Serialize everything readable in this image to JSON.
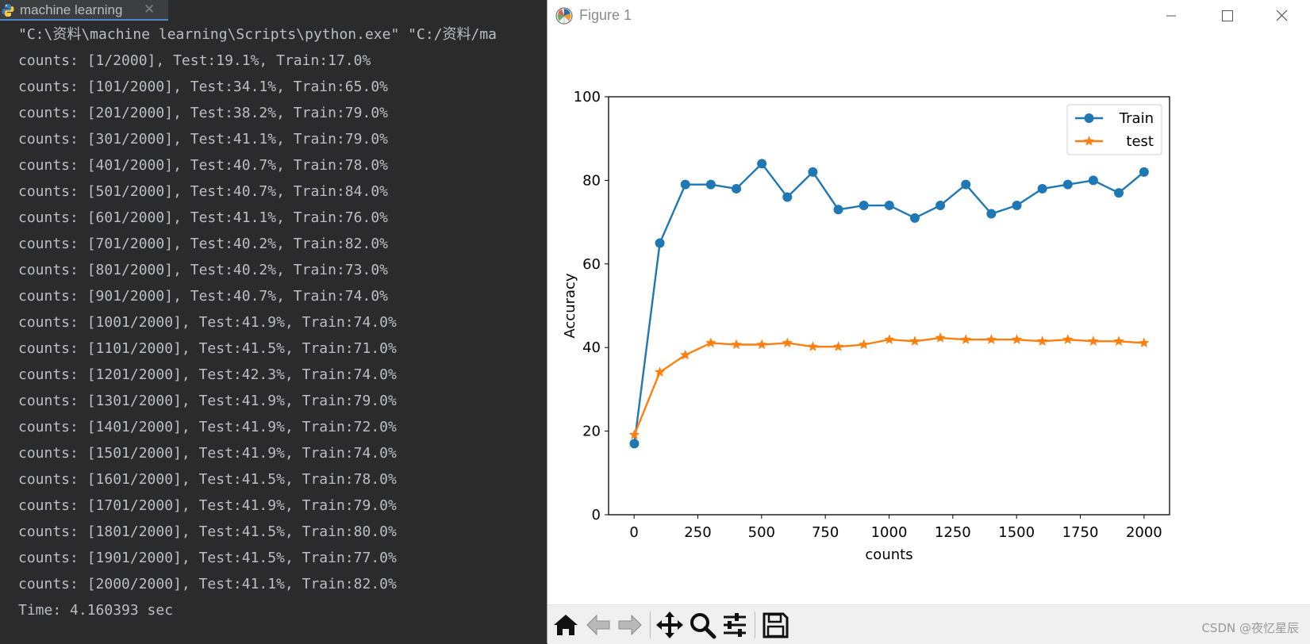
{
  "console": {
    "tab_label": "machine learning",
    "lines": [
      "\"C:\\资料\\machine learning\\Scripts\\python.exe\" \"C:/资料/ma",
      "counts: [1/2000], Test:19.1%, Train:17.0%",
      "counts: [101/2000], Test:34.1%, Train:65.0%",
      "counts: [201/2000], Test:38.2%, Train:79.0%",
      "counts: [301/2000], Test:41.1%, Train:79.0%",
      "counts: [401/2000], Test:40.7%, Train:78.0%",
      "counts: [501/2000], Test:40.7%, Train:84.0%",
      "counts: [601/2000], Test:41.1%, Train:76.0%",
      "counts: [701/2000], Test:40.2%, Train:82.0%",
      "counts: [801/2000], Test:40.2%, Train:73.0%",
      "counts: [901/2000], Test:40.7%, Train:74.0%",
      "counts: [1001/2000], Test:41.9%, Train:74.0%",
      "counts: [1101/2000], Test:41.5%, Train:71.0%",
      "counts: [1201/2000], Test:42.3%, Train:74.0%",
      "counts: [1301/2000], Test:41.9%, Train:79.0%",
      "counts: [1401/2000], Test:41.9%, Train:72.0%",
      "counts: [1501/2000], Test:41.9%, Train:74.0%",
      "counts: [1601/2000], Test:41.5%, Train:78.0%",
      "counts: [1701/2000], Test:41.9%, Train:79.0%",
      "counts: [1801/2000], Test:41.5%, Train:80.0%",
      "counts: [1901/2000], Test:41.5%, Train:77.0%",
      "counts: [2000/2000], Test:41.1%, Train:82.0%",
      "Time: 4.160393 sec"
    ]
  },
  "figure": {
    "title": "Figure 1",
    "watermark": "CSDN @夜忆星辰",
    "toolbar_icons": [
      "home-icon",
      "back-arrow-icon",
      "forward-arrow-icon",
      "pan-icon",
      "zoom-icon",
      "configure-subplots-icon",
      "save-icon"
    ],
    "window_icons": [
      "minimize-icon",
      "maximize-icon",
      "close-icon"
    ]
  },
  "chart_data": {
    "type": "line",
    "xlabel": "counts",
    "ylabel": "Accuracy",
    "xlim": [
      -100,
      2100
    ],
    "ylim": [
      0,
      100
    ],
    "xticks": [
      0,
      250,
      500,
      750,
      1000,
      1250,
      1500,
      1750,
      2000
    ],
    "yticks": [
      0,
      20,
      40,
      60,
      80,
      100
    ],
    "grid": false,
    "legend_position": "upper-right",
    "x": [
      1,
      101,
      201,
      301,
      401,
      501,
      601,
      701,
      801,
      901,
      1001,
      1101,
      1201,
      1301,
      1401,
      1501,
      1601,
      1701,
      1801,
      1901,
      2000
    ],
    "series": [
      {
        "name": "Train",
        "color": "#1f77b4",
        "marker": "circle",
        "values": [
          17.0,
          65.0,
          79.0,
          79.0,
          78.0,
          84.0,
          76.0,
          82.0,
          73.0,
          74.0,
          74.0,
          71.0,
          74.0,
          79.0,
          72.0,
          74.0,
          78.0,
          79.0,
          80.0,
          77.0,
          82.0
        ]
      },
      {
        "name": "test",
        "color": "#ff7f0e",
        "marker": "star",
        "values": [
          19.1,
          34.1,
          38.2,
          41.1,
          40.7,
          40.7,
          41.1,
          40.2,
          40.2,
          40.7,
          41.9,
          41.5,
          42.3,
          41.9,
          41.9,
          41.9,
          41.5,
          41.9,
          41.5,
          41.5,
          41.1
        ]
      }
    ]
  }
}
